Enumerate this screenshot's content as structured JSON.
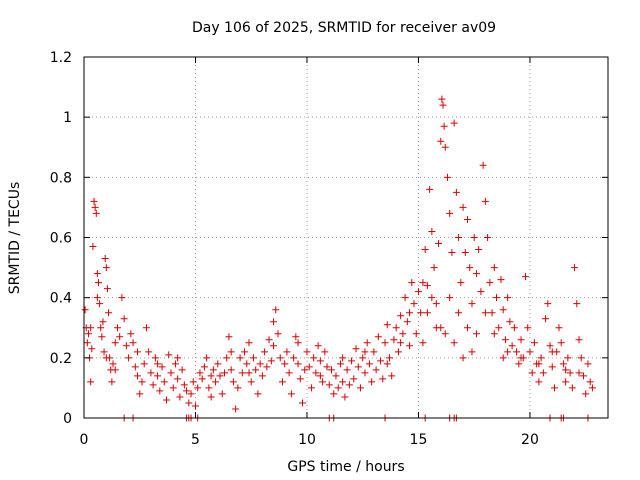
{
  "chart_data": {
    "type": "scatter",
    "title": "Day 106 of 2025, SRMTID for receiver av09",
    "xlabel": "GPS time / hours",
    "ylabel": "SRMTID / TECUs",
    "xlim": [
      0,
      23.5
    ],
    "ylim": [
      0,
      1.2
    ],
    "xticks": [
      0,
      5,
      10,
      15,
      20
    ],
    "xtick_labels": [
      "0",
      "5",
      "10",
      "15",
      "20"
    ],
    "yticks": [
      0,
      0.2,
      0.4,
      0.6,
      0.8,
      1,
      1.2
    ],
    "ytick_labels": [
      "0",
      "0.2",
      "0.4",
      "0.6",
      "0.8",
      "1",
      "1.2"
    ],
    "grid": true,
    "marker": "+",
    "color": "#dd0000",
    "series": [
      {
        "name": "av09",
        "points": [
          [
            0.05,
            0.36
          ],
          [
            0.1,
            0.3
          ],
          [
            0.15,
            0.25
          ],
          [
            0.2,
            0.28
          ],
          [
            0.25,
            0.2
          ],
          [
            0.3,
            0.12
          ],
          [
            0.35,
            0.23
          ],
          [
            0.4,
            0.57
          ],
          [
            0.45,
            0.72
          ],
          [
            0.5,
            0.7
          ],
          [
            0.55,
            0.68
          ],
          [
            0.6,
            0.48
          ],
          [
            0.65,
            0.45
          ],
          [
            0.7,
            0.38
          ],
          [
            0.75,
            0.3
          ],
          [
            0.8,
            0.27
          ],
          [
            0.85,
            0.32
          ],
          [
            0.9,
            0.22
          ],
          [
            0.95,
            0.53
          ],
          [
            1.0,
            0.5
          ],
          [
            1.05,
            0.43
          ],
          [
            1.1,
            0.35
          ],
          [
            1.15,
            0.2
          ],
          [
            1.2,
            0.16
          ],
          [
            1.25,
            0.12
          ],
          [
            1.3,
            0.18
          ],
          [
            1.4,
            0.25
          ],
          [
            1.5,
            0.3
          ],
          [
            1.6,
            0.27
          ],
          [
            1.7,
            0.4
          ],
          [
            1.8,
            0.33
          ],
          [
            1.9,
            0.24
          ],
          [
            2.0,
            0.2
          ],
          [
            2.1,
            0.28
          ],
          [
            2.2,
            0.25
          ],
          [
            2.3,
            0.17
          ],
          [
            2.4,
            0.14
          ],
          [
            2.5,
            0.08
          ],
          [
            2.6,
            0.12
          ],
          [
            2.7,
            0.18
          ],
          [
            2.8,
            0.3
          ],
          [
            2.9,
            0.22
          ],
          [
            3.0,
            0.15
          ],
          [
            3.1,
            0.11
          ],
          [
            3.2,
            0.2
          ],
          [
            3.3,
            0.14
          ],
          [
            3.4,
            0.09
          ],
          [
            3.5,
            0.17
          ],
          [
            3.6,
            0.12
          ],
          [
            3.7,
            0.06
          ],
          [
            3.8,
            0.21
          ],
          [
            3.9,
            0.15
          ],
          [
            4.0,
            0.1
          ],
          [
            4.1,
            0.18
          ],
          [
            4.2,
            0.13
          ],
          [
            4.3,
            0.07
          ],
          [
            4.4,
            0.16
          ],
          [
            4.5,
            0.11
          ],
          [
            4.6,
            0.09
          ],
          [
            4.7,
            0.05
          ],
          [
            4.8,
            0.08
          ],
          [
            4.9,
            0.12
          ],
          [
            5.0,
            0.04
          ],
          [
            5.1,
            0.1
          ],
          [
            5.2,
            0.15
          ],
          [
            5.3,
            0.13
          ],
          [
            5.4,
            0.17
          ],
          [
            5.5,
            0.2
          ],
          [
            5.6,
            0.1
          ],
          [
            5.7,
            0.07
          ],
          [
            5.8,
            0.16
          ],
          [
            5.9,
            0.12
          ],
          [
            6.0,
            0.18
          ],
          [
            6.1,
            0.14
          ],
          [
            6.2,
            0.08
          ],
          [
            6.3,
            0.15
          ],
          [
            6.4,
            0.2
          ],
          [
            6.5,
            0.27
          ],
          [
            6.6,
            0.16
          ],
          [
            6.7,
            0.12
          ],
          [
            6.8,
            0.03
          ],
          [
            6.9,
            0.1
          ],
          [
            7.0,
            0.2
          ],
          [
            7.1,
            0.15
          ],
          [
            7.2,
            0.22
          ],
          [
            7.3,
            0.18
          ],
          [
            7.4,
            0.25
          ],
          [
            7.5,
            0.12
          ],
          [
            7.6,
            0.2
          ],
          [
            7.7,
            0.16
          ],
          [
            7.8,
            0.08
          ],
          [
            7.9,
            0.18
          ],
          [
            8.0,
            0.14
          ],
          [
            8.1,
            0.22
          ],
          [
            8.2,
            0.17
          ],
          [
            8.3,
            0.26
          ],
          [
            8.4,
            0.19
          ],
          [
            8.5,
            0.32
          ],
          [
            8.6,
            0.36
          ],
          [
            8.7,
            0.28
          ],
          [
            8.8,
            0.2
          ],
          [
            8.9,
            0.12
          ],
          [
            9.0,
            0.18
          ],
          [
            9.1,
            0.22
          ],
          [
            9.2,
            0.15
          ],
          [
            9.3,
            0.08
          ],
          [
            9.4,
            0.2
          ],
          [
            9.5,
            0.27
          ],
          [
            9.6,
            0.18
          ],
          [
            9.7,
            0.13
          ],
          [
            9.8,
            0.05
          ],
          [
            9.9,
            0.16
          ],
          [
            10.0,
            0.22
          ],
          [
            10.1,
            0.17
          ],
          [
            10.2,
            0.1
          ],
          [
            10.3,
            0.2
          ],
          [
            10.4,
            0.15
          ],
          [
            10.5,
            0.24
          ],
          [
            10.6,
            0.19
          ],
          [
            10.7,
            0.12
          ],
          [
            10.8,
            0.22
          ],
          [
            10.9,
            0.17
          ],
          [
            11.0,
            0.11
          ],
          [
            11.1,
            0.16
          ],
          [
            11.2,
            0.08
          ],
          [
            11.3,
            0.14
          ],
          [
            11.4,
            0.1
          ],
          [
            11.5,
            0.18
          ],
          [
            11.6,
            0.12
          ],
          [
            11.7,
            0.07
          ],
          [
            11.8,
            0.16
          ],
          [
            11.9,
            0.11
          ],
          [
            12.0,
            0.19
          ],
          [
            12.1,
            0.13
          ],
          [
            12.2,
            0.23
          ],
          [
            12.3,
            0.17
          ],
          [
            12.4,
            0.1
          ],
          [
            12.5,
            0.2
          ],
          [
            12.6,
            0.15
          ],
          [
            12.7,
            0.25
          ],
          [
            12.8,
            0.18
          ],
          [
            12.9,
            0.12
          ],
          [
            13.0,
            0.22
          ],
          [
            13.1,
            0.16
          ],
          [
            13.2,
            0.27
          ],
          [
            13.3,
            0.19
          ],
          [
            13.4,
            0.13
          ],
          [
            13.5,
            0.25
          ],
          [
            13.6,
            0.31
          ],
          [
            13.7,
            0.2
          ],
          [
            13.8,
            0.14
          ],
          [
            13.9,
            0.26
          ],
          [
            14.0,
            0.3
          ],
          [
            14.1,
            0.22
          ],
          [
            14.2,
            0.34
          ],
          [
            14.3,
            0.28
          ],
          [
            14.4,
            0.4
          ],
          [
            14.5,
            0.32
          ],
          [
            14.6,
            0.24
          ],
          [
            14.7,
            0.45
          ],
          [
            14.8,
            0.38
          ],
          [
            14.9,
            0.28
          ],
          [
            15.0,
            0.42
          ],
          [
            15.1,
            0.35
          ],
          [
            15.2,
            0.25
          ],
          [
            15.3,
            0.56
          ],
          [
            15.4,
            0.44
          ],
          [
            15.5,
            0.76
          ],
          [
            15.6,
            0.62
          ],
          [
            15.7,
            0.5
          ],
          [
            15.8,
            0.38
          ],
          [
            15.9,
            0.58
          ],
          [
            16.0,
            0.92
          ],
          [
            16.05,
            1.06
          ],
          [
            16.1,
            1.04
          ],
          [
            16.15,
            0.97
          ],
          [
            16.2,
            0.9
          ],
          [
            16.3,
            0.8
          ],
          [
            16.4,
            0.68
          ],
          [
            16.5,
            0.55
          ],
          [
            16.6,
            0.98
          ],
          [
            16.7,
            0.75
          ],
          [
            16.8,
            0.6
          ],
          [
            16.9,
            0.45
          ],
          [
            17.0,
            0.7
          ],
          [
            17.1,
            0.55
          ],
          [
            17.2,
            0.66
          ],
          [
            17.3,
            0.5
          ],
          [
            17.4,
            0.38
          ],
          [
            17.5,
            0.6
          ],
          [
            17.6,
            0.48
          ],
          [
            17.7,
            0.56
          ],
          [
            17.8,
            0.42
          ],
          [
            17.9,
            0.84
          ],
          [
            18.0,
            0.72
          ],
          [
            18.1,
            0.6
          ],
          [
            18.2,
            0.45
          ],
          [
            18.3,
            0.35
          ],
          [
            18.4,
            0.5
          ],
          [
            18.5,
            0.4
          ],
          [
            18.6,
            0.3
          ],
          [
            18.7,
            0.46
          ],
          [
            18.8,
            0.36
          ],
          [
            18.9,
            0.26
          ],
          [
            19.0,
            0.4
          ],
          [
            19.1,
            0.32
          ],
          [
            19.2,
            0.24
          ],
          [
            19.3,
            0.3
          ],
          [
            19.4,
            0.22
          ],
          [
            19.5,
            0.18
          ],
          [
            19.6,
            0.26
          ],
          [
            19.7,
            0.2
          ],
          [
            19.8,
            0.47
          ],
          [
            19.9,
            0.3
          ],
          [
            20.0,
            0.22
          ],
          [
            20.1,
            0.15
          ],
          [
            20.2,
            0.25
          ],
          [
            20.3,
            0.18
          ],
          [
            20.4,
            0.12
          ],
          [
            20.5,
            0.2
          ],
          [
            20.6,
            0.15
          ],
          [
            20.7,
            0.33
          ],
          [
            20.8,
            0.38
          ],
          [
            20.9,
            0.24
          ],
          [
            21.0,
            0.17
          ],
          [
            21.1,
            0.1
          ],
          [
            21.2,
            0.22
          ],
          [
            21.3,
            0.3
          ],
          [
            21.4,
            0.25
          ],
          [
            21.5,
            0.18
          ],
          [
            21.6,
            0.12
          ],
          [
            21.7,
            0.2
          ],
          [
            21.8,
            0.15
          ],
          [
            21.9,
            0.1
          ],
          [
            22.0,
            0.5
          ],
          [
            22.1,
            0.38
          ],
          [
            22.2,
            0.26
          ],
          [
            22.3,
            0.2
          ],
          [
            22.4,
            0.14
          ],
          [
            22.5,
            0.08
          ],
          [
            22.6,
            0.18
          ],
          [
            22.7,
            0.12
          ],
          [
            22.8,
            0.1
          ],
          [
            0.3,
            0.3
          ],
          [
            0.6,
            0.4
          ],
          [
            1.0,
            0.2
          ],
          [
            1.4,
            0.16
          ],
          [
            2.4,
            0.22
          ],
          [
            3.3,
            0.18
          ],
          [
            4.2,
            0.2
          ],
          [
            5.7,
            0.14
          ],
          [
            6.6,
            0.22
          ],
          [
            7.4,
            0.15
          ],
          [
            8.5,
            0.24
          ],
          [
            9.6,
            0.25
          ],
          [
            10.6,
            0.14
          ],
          [
            11.6,
            0.2
          ],
          [
            12.6,
            0.22
          ],
          [
            13.6,
            0.18
          ],
          [
            14.6,
            0.35
          ],
          [
            15.2,
            0.45
          ],
          [
            15.6,
            0.4
          ],
          [
            16.0,
            0.3
          ],
          [
            16.4,
            0.4
          ],
          [
            16.8,
            0.35
          ],
          [
            17.2,
            0.3
          ],
          [
            17.6,
            0.28
          ],
          [
            18.0,
            0.35
          ],
          [
            18.4,
            0.28
          ],
          [
            19.0,
            0.22
          ],
          [
            19.6,
            0.2
          ],
          [
            20.4,
            0.18
          ],
          [
            21.0,
            0.22
          ],
          [
            21.6,
            0.16
          ],
          [
            22.2,
            0.15
          ],
          [
            16.2,
            0.28
          ],
          [
            16.6,
            0.25
          ],
          [
            17.0,
            0.2
          ],
          [
            17.4,
            0.22
          ],
          [
            15.4,
            0.35
          ],
          [
            15.8,
            0.3
          ],
          [
            18.8,
            0.2
          ],
          [
            14.2,
            0.25
          ]
        ]
      }
    ],
    "zero_points_x": [
      1.8,
      2.2,
      4.6,
      4.7,
      4.8,
      5.1,
      11.0,
      11.2,
      13.5,
      15.3,
      16.4,
      16.6,
      16.7,
      20.9,
      21.4,
      21.5,
      22.6
    ]
  }
}
